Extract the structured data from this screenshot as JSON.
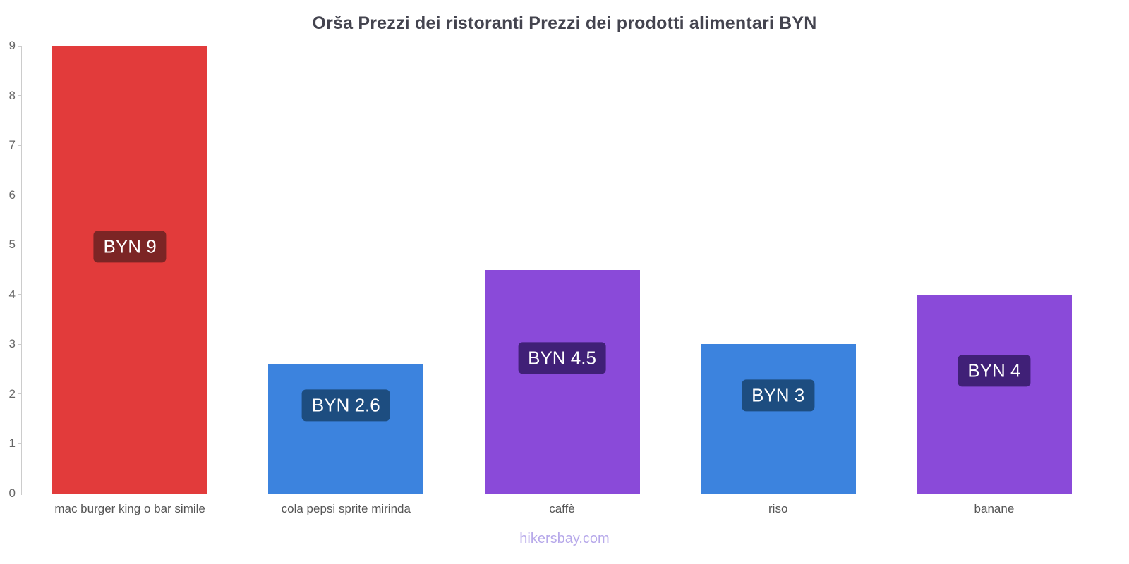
{
  "page": {
    "title": "Orša Prezzi dei ristoranti Prezzi dei prodotti alimentari BYN",
    "watermark": "hikersbay.com"
  },
  "chart_data": {
    "type": "bar",
    "title": "Orša Prezzi dei ristoranti Prezzi dei prodotti alimentari BYN",
    "categories": [
      "mac burger king o bar simile",
      "cola pepsi sprite mirinda",
      "caffè",
      "riso",
      "banane"
    ],
    "values": [
      9,
      2.6,
      4.5,
      3,
      4
    ],
    "value_labels": [
      "BYN 9",
      "BYN 2.6",
      "BYN 4.5",
      "BYN 3",
      "BYN 4"
    ],
    "currency": "BYN",
    "xlabel": "",
    "ylabel": "",
    "ylim": [
      0,
      9
    ],
    "yticks": [
      0,
      1,
      2,
      3,
      4,
      5,
      6,
      7,
      8,
      9
    ],
    "grid": false,
    "legend": false,
    "bar_colors": [
      "#e23b3b",
      "#3c83de",
      "#8a4ad9",
      "#3c83de",
      "#8a4ad9"
    ],
    "label_bg_colors": [
      "#7c2525",
      "#1d4d80",
      "#402077",
      "#1d4d80",
      "#402077"
    ],
    "axis_color": "#cccccc",
    "tick_label_color": "#666666",
    "category_label_color": "#555555",
    "title_color": "#44444f",
    "watermark_color": "#b7a9ea"
  }
}
